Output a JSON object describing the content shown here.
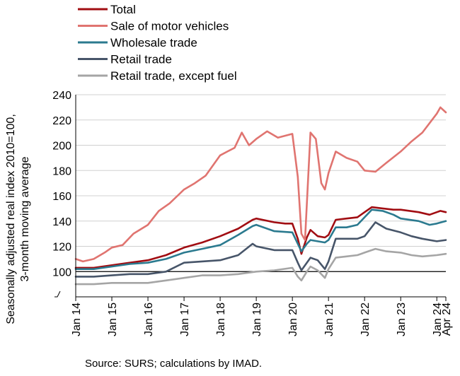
{
  "chart_data": {
    "type": "line",
    "ylabel": [
      "Seasonally adjusted real index 2010=100,",
      "3-month moving average"
    ],
    "ylim": [
      80,
      240
    ],
    "yticks": [
      100,
      120,
      140,
      160,
      180,
      200,
      220,
      240
    ],
    "reference_line": 100,
    "grid": "horizontal",
    "legend_position": "top-left",
    "xticks": [
      {
        "label": "Jan 14",
        "t": 2014.0
      },
      {
        "label": "Jan 15",
        "t": 2015.0
      },
      {
        "label": "Jan 16",
        "t": 2016.0
      },
      {
        "label": "Jan 17",
        "t": 2017.0
      },
      {
        "label": "Jan 18",
        "t": 2018.0
      },
      {
        "label": "Jan 19",
        "t": 2019.0
      },
      {
        "label": "Jan 20",
        "t": 2020.0
      },
      {
        "label": "Jan 21",
        "t": 2021.0
      },
      {
        "label": "Jan 22",
        "t": 2022.0
      },
      {
        "label": "Jan 23",
        "t": 2023.0
      },
      {
        "label": "Jan 24",
        "t": 2024.0
      },
      {
        "label": "Apr 24",
        "t": 2024.25
      }
    ],
    "series": [
      {
        "name": "Total",
        "color": "#a10d12",
        "points": [
          [
            2014.0,
            103
          ],
          [
            2014.5,
            103
          ],
          [
            2015.0,
            105
          ],
          [
            2015.5,
            107
          ],
          [
            2016.0,
            109
          ],
          [
            2016.5,
            113
          ],
          [
            2017.0,
            119
          ],
          [
            2017.5,
            123
          ],
          [
            2018.0,
            128
          ],
          [
            2018.5,
            134
          ],
          [
            2018.9,
            141
          ],
          [
            2019.0,
            142
          ],
          [
            2019.5,
            139
          ],
          [
            2019.8,
            138
          ],
          [
            2020.0,
            138
          ],
          [
            2020.15,
            126
          ],
          [
            2020.25,
            114
          ],
          [
            2020.4,
            127
          ],
          [
            2020.5,
            133
          ],
          [
            2020.7,
            128
          ],
          [
            2020.9,
            127
          ],
          [
            2021.0,
            129
          ],
          [
            2021.2,
            141
          ],
          [
            2021.5,
            142
          ],
          [
            2021.8,
            143
          ],
          [
            2022.0,
            147
          ],
          [
            2022.2,
            151
          ],
          [
            2022.5,
            150
          ],
          [
            2022.8,
            149
          ],
          [
            2023.0,
            149
          ],
          [
            2023.5,
            147
          ],
          [
            2023.8,
            145
          ],
          [
            2024.0,
            147
          ],
          [
            2024.1,
            148
          ],
          [
            2024.25,
            147
          ]
        ]
      },
      {
        "name": "Sale of motor vehicles",
        "color": "#e07470",
        "points": [
          [
            2014.0,
            110
          ],
          [
            2014.2,
            108
          ],
          [
            2014.5,
            110
          ],
          [
            2014.8,
            115
          ],
          [
            2015.0,
            119
          ],
          [
            2015.3,
            121
          ],
          [
            2015.6,
            130
          ],
          [
            2016.0,
            137
          ],
          [
            2016.3,
            148
          ],
          [
            2016.6,
            154
          ],
          [
            2017.0,
            165
          ],
          [
            2017.3,
            170
          ],
          [
            2017.6,
            176
          ],
          [
            2018.0,
            192
          ],
          [
            2018.2,
            195
          ],
          [
            2018.4,
            198
          ],
          [
            2018.6,
            210
          ],
          [
            2018.8,
            200
          ],
          [
            2019.0,
            205
          ],
          [
            2019.3,
            211
          ],
          [
            2019.6,
            206
          ],
          [
            2020.0,
            209
          ],
          [
            2020.15,
            175
          ],
          [
            2020.25,
            130
          ],
          [
            2020.35,
            125
          ],
          [
            2020.5,
            210
          ],
          [
            2020.65,
            205
          ],
          [
            2020.8,
            170
          ],
          [
            2020.9,
            165
          ],
          [
            2021.0,
            178
          ],
          [
            2021.2,
            195
          ],
          [
            2021.5,
            190
          ],
          [
            2021.8,
            187
          ],
          [
            2022.0,
            180
          ],
          [
            2022.3,
            179
          ],
          [
            2022.6,
            186
          ],
          [
            2023.0,
            195
          ],
          [
            2023.3,
            203
          ],
          [
            2023.6,
            210
          ],
          [
            2024.0,
            225
          ],
          [
            2024.1,
            230
          ],
          [
            2024.25,
            226
          ]
        ]
      },
      {
        "name": "Wholesale trade",
        "color": "#2b7a8f",
        "points": [
          [
            2014.0,
            102
          ],
          [
            2014.5,
            102
          ],
          [
            2015.0,
            104
          ],
          [
            2015.5,
            106
          ],
          [
            2016.0,
            107
          ],
          [
            2016.5,
            110
          ],
          [
            2017.0,
            115
          ],
          [
            2017.5,
            118
          ],
          [
            2018.0,
            121
          ],
          [
            2018.5,
            129
          ],
          [
            2018.9,
            136
          ],
          [
            2019.0,
            137
          ],
          [
            2019.5,
            132
          ],
          [
            2020.0,
            131
          ],
          [
            2020.15,
            122
          ],
          [
            2020.25,
            116
          ],
          [
            2020.4,
            122
          ],
          [
            2020.5,
            125
          ],
          [
            2020.7,
            124
          ],
          [
            2020.9,
            123
          ],
          [
            2021.0,
            125
          ],
          [
            2021.2,
            135
          ],
          [
            2021.5,
            135
          ],
          [
            2021.8,
            137
          ],
          [
            2022.0,
            143
          ],
          [
            2022.2,
            149
          ],
          [
            2022.5,
            148
          ],
          [
            2022.8,
            145
          ],
          [
            2023.0,
            142
          ],
          [
            2023.5,
            140
          ],
          [
            2023.8,
            137
          ],
          [
            2024.0,
            138
          ],
          [
            2024.25,
            140
          ]
        ]
      },
      {
        "name": "Retail trade",
        "color": "#475569",
        "points": [
          [
            2014.0,
            96
          ],
          [
            2014.5,
            96
          ],
          [
            2015.0,
            97
          ],
          [
            2015.5,
            98
          ],
          [
            2016.0,
            98
          ],
          [
            2016.5,
            100
          ],
          [
            2017.0,
            107
          ],
          [
            2017.5,
            108
          ],
          [
            2018.0,
            109
          ],
          [
            2018.5,
            113
          ],
          [
            2018.9,
            122
          ],
          [
            2019.0,
            120
          ],
          [
            2019.5,
            117
          ],
          [
            2020.0,
            117
          ],
          [
            2020.15,
            107
          ],
          [
            2020.25,
            101
          ],
          [
            2020.4,
            107
          ],
          [
            2020.5,
            111
          ],
          [
            2020.7,
            109
          ],
          [
            2020.9,
            102
          ],
          [
            2021.0,
            108
          ],
          [
            2021.2,
            126
          ],
          [
            2021.5,
            126
          ],
          [
            2021.8,
            126
          ],
          [
            2022.0,
            128
          ],
          [
            2022.3,
            139
          ],
          [
            2022.6,
            134
          ],
          [
            2023.0,
            131
          ],
          [
            2023.3,
            128
          ],
          [
            2023.6,
            126
          ],
          [
            2024.0,
            124
          ],
          [
            2024.25,
            125
          ]
        ]
      },
      {
        "name": "Retail trade, except fuel",
        "color": "#a5a5a5",
        "points": [
          [
            2014.0,
            90
          ],
          [
            2014.5,
            90
          ],
          [
            2015.0,
            91
          ],
          [
            2015.5,
            91
          ],
          [
            2016.0,
            91
          ],
          [
            2016.5,
            93
          ],
          [
            2017.0,
            95
          ],
          [
            2017.5,
            97
          ],
          [
            2018.0,
            97
          ],
          [
            2018.5,
            98
          ],
          [
            2019.0,
            100
          ],
          [
            2019.5,
            101
          ],
          [
            2020.0,
            103
          ],
          [
            2020.15,
            96
          ],
          [
            2020.25,
            93
          ],
          [
            2020.4,
            100
          ],
          [
            2020.5,
            104
          ],
          [
            2020.7,
            101
          ],
          [
            2020.9,
            95
          ],
          [
            2021.0,
            102
          ],
          [
            2021.2,
            111
          ],
          [
            2021.5,
            112
          ],
          [
            2021.8,
            113
          ],
          [
            2022.0,
            115
          ],
          [
            2022.3,
            118
          ],
          [
            2022.6,
            116
          ],
          [
            2023.0,
            115
          ],
          [
            2023.3,
            113
          ],
          [
            2023.6,
            112
          ],
          [
            2024.0,
            113
          ],
          [
            2024.25,
            114
          ]
        ]
      }
    ]
  },
  "source": "Source: SURS; calculations by IMAD."
}
